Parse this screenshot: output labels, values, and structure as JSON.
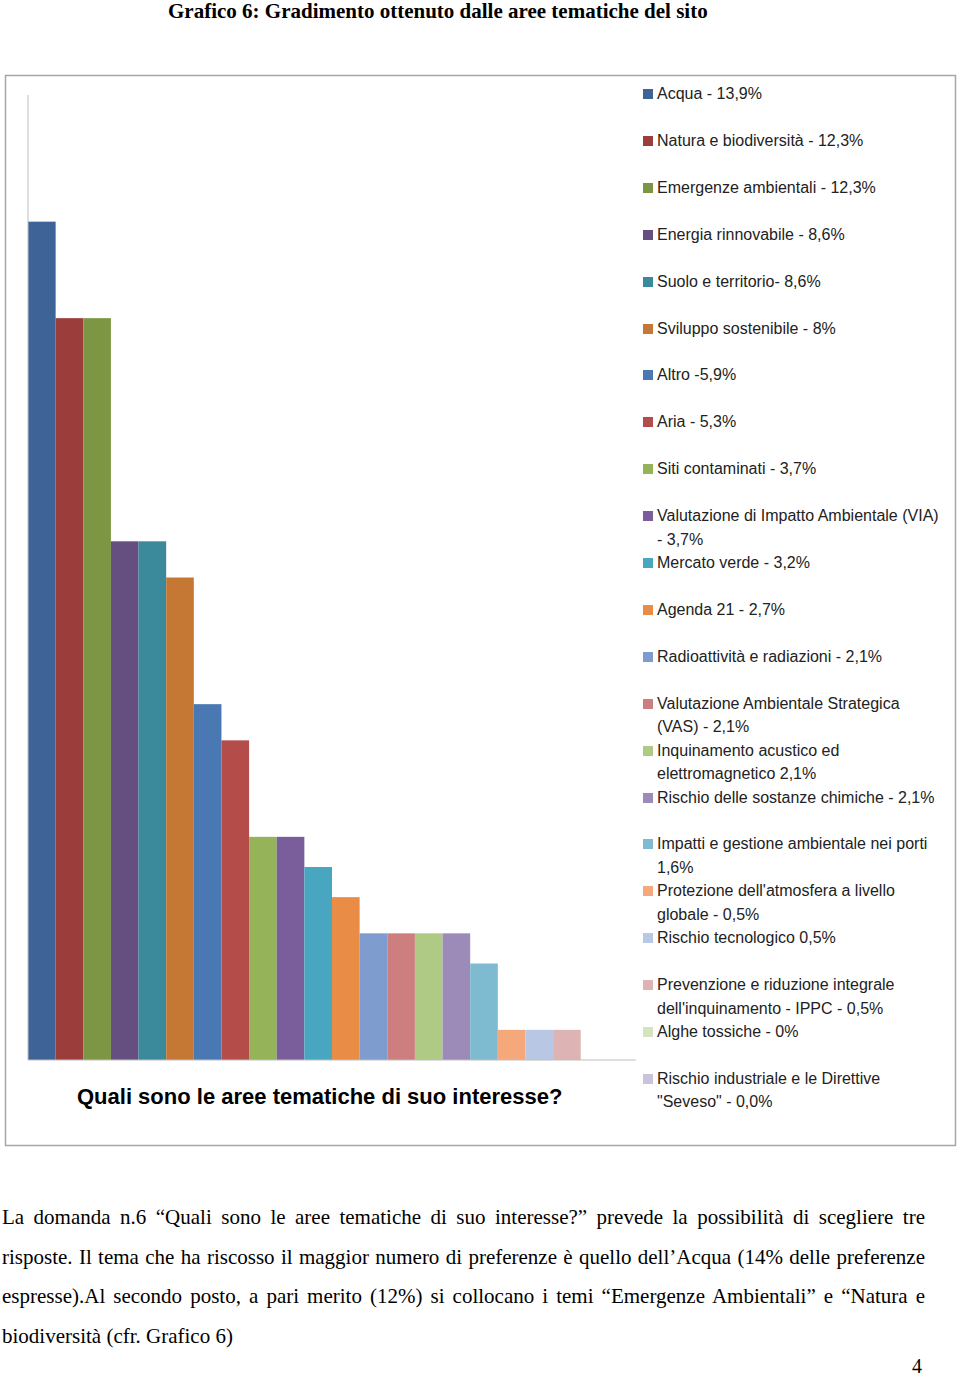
{
  "page": {
    "title": "Grafico 6: Gradimento ottenuto dalle aree tematiche del sito",
    "paragraph": "La domanda n.6 “Quali sono le aree tematiche di suo interesse?” prevede la possibilità di scegliere tre risposte. Il tema che ha riscosso il maggior numero di preferenze è quello dell’Acqua (14% delle preferenze espresse).Al secondo posto, a pari merito (12%) si collocano i temi “Emergenze Ambientali” e “Natura e biodiversità (cfr. Grafico 6)",
    "page_number": "4"
  },
  "chart_data": {
    "type": "bar",
    "x_label": "Quali sono le aree tematiche di suo interesse?",
    "categories": [
      null
    ],
    "ylim": [
      0,
      16
    ],
    "tick_labels": false,
    "legend": "right",
    "series": [
      {
        "name": "Acqua - 13,9%",
        "color": "#3E6497",
        "values": [
          13.9
        ]
      },
      {
        "name": "Natura e biodiversità - 12,3%",
        "color": "#9A3D3B",
        "values": [
          12.3
        ]
      },
      {
        "name": "Emergenze ambientali - 12,3%",
        "color": "#7D9643",
        "values": [
          12.3
        ]
      },
      {
        "name": "Energia rinnovabile - 8,6%",
        "color": "#654E80",
        "values": [
          8.6
        ]
      },
      {
        "name": "Suolo e territorio- 8,6%",
        "color": "#3A8A9C",
        "values": [
          8.6
        ]
      },
      {
        "name": "Sviluppo sostenibile - 8%",
        "color": "#C57834",
        "values": [
          8
        ]
      },
      {
        "name": "Altro -5,9%",
        "color": "#4A78B3",
        "values": [
          5.9
        ]
      },
      {
        "name": "Aria - 5,3%",
        "color": "#B44C4A",
        "values": [
          5.3
        ]
      },
      {
        "name": "Siti contaminati - 3,7%",
        "color": "#95B45A",
        "values": [
          3.7
        ]
      },
      {
        "name": "Valutazione di Impatto Ambientale (VIA) - 3,7%",
        "color": "#7A5E9C",
        "values": [
          3.7
        ]
      },
      {
        "name": "Mercato verde - 3,2%",
        "color": "#48A6C0",
        "values": [
          3.2
        ]
      },
      {
        "name": "Agenda 21 - 2,7%",
        "color": "#E98C46",
        "values": [
          2.7
        ]
      },
      {
        "name": "Radioattività e radiazioni - 2,1%",
        "color": "#7F9CCF",
        "values": [
          2.1
        ]
      },
      {
        "name": "Valutazione Ambientale Strategica (VAS) - 2,1%",
        "color": "#CC7F7E",
        "values": [
          2.1
        ]
      },
      {
        "name": "Inquinamento acustico ed elettromagnetico 2,1%",
        "color": "#AECA84",
        "values": [
          2.1
        ]
      },
      {
        "name": "Rischio delle sostanze chimiche - 2,1%",
        "color": "#9C8BB8",
        "values": [
          2.1
        ]
      },
      {
        "name": "Impatti e gestione ambientale nei porti 1,6%",
        "color": "#7FBBD0",
        "values": [
          1.6
        ]
      },
      {
        "name": "Protezione dell'atmosfera a livello globale - 0,5%",
        "color": "#F5A97A",
        "values": [
          0.5
        ]
      },
      {
        "name": "Rischio tecnologico 0,5%",
        "color": "#B8C7E3",
        "values": [
          0.5
        ]
      },
      {
        "name": "Prevenzione e riduzione integrale dell'inquinamento -  IPPC - 0,5%",
        "color": "#DDB4B3",
        "values": [
          0.5
        ]
      },
      {
        "name": "Alghe tossiche - 0%",
        "color": "#D5E3C0",
        "values": [
          0
        ]
      },
      {
        "name": "Rischio industriale e le Direttive \"Seveso\" - 0,0%",
        "color": "#CBC2DC",
        "values": [
          0
        ]
      }
    ]
  }
}
